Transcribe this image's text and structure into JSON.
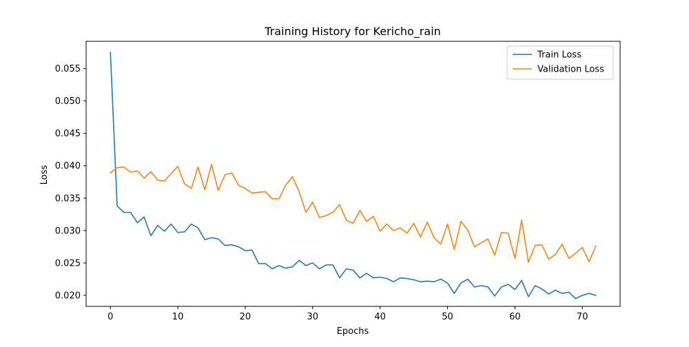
{
  "chart_data": {
    "type": "line",
    "title": "Training History for Kericho_rain",
    "xlabel": "Epochs",
    "ylabel": "Loss",
    "xlim": [
      -3.6,
      75.6
    ],
    "ylim": [
      0.0183,
      0.0592
    ],
    "xticks": [
      0,
      10,
      20,
      30,
      40,
      50,
      60,
      70
    ],
    "xtick_labels": [
      "0",
      "10",
      "20",
      "30",
      "40",
      "50",
      "60",
      "70"
    ],
    "yticks": [
      0.02,
      0.025,
      0.03,
      0.035,
      0.04,
      0.045,
      0.05,
      0.055
    ],
    "ytick_labels": [
      "0.020",
      "0.025",
      "0.030",
      "0.035",
      "0.040",
      "0.045",
      "0.050",
      "0.055"
    ],
    "grid": false,
    "legend_position": "top-right",
    "series": [
      {
        "name": "Train Loss",
        "color": "#1f77b4",
        "x": [
          0,
          1,
          2,
          3,
          4,
          5,
          6,
          7,
          8,
          9,
          10,
          11,
          12,
          13,
          14,
          15,
          16,
          17,
          18,
          19,
          20,
          21,
          22,
          23,
          24,
          25,
          26,
          27,
          28,
          29,
          30,
          31,
          32,
          33,
          34,
          35,
          36,
          37,
          38,
          39,
          40,
          41,
          42,
          43,
          44,
          45,
          46,
          47,
          48,
          49,
          50,
          51,
          52,
          53,
          54,
          55,
          56,
          57,
          58,
          59,
          60,
          61,
          62,
          63,
          64,
          65,
          66,
          67,
          68,
          69,
          70,
          71,
          72
        ],
        "values": [
          0.0575,
          0.0338,
          0.0328,
          0.0328,
          0.0312,
          0.0321,
          0.0292,
          0.0308,
          0.0299,
          0.031,
          0.0297,
          0.0298,
          0.031,
          0.0304,
          0.0286,
          0.0289,
          0.0287,
          0.0277,
          0.0278,
          0.0275,
          0.0269,
          0.027,
          0.0249,
          0.0249,
          0.0241,
          0.0246,
          0.0242,
          0.0244,
          0.0254,
          0.0246,
          0.025,
          0.0241,
          0.0247,
          0.0247,
          0.0227,
          0.0241,
          0.0239,
          0.0227,
          0.0234,
          0.0227,
          0.0228,
          0.0226,
          0.0221,
          0.0227,
          0.0226,
          0.0224,
          0.0221,
          0.0222,
          0.0221,
          0.0225,
          0.0219,
          0.0203,
          0.0219,
          0.0225,
          0.0213,
          0.0215,
          0.0213,
          0.0199,
          0.0213,
          0.0217,
          0.0209,
          0.0223,
          0.0198,
          0.0215,
          0.021,
          0.0202,
          0.0208,
          0.0203,
          0.0205,
          0.0195,
          0.02,
          0.0203,
          0.02
        ]
      },
      {
        "name": "Validation Loss",
        "color": "#ff7f0e",
        "x": [
          0,
          1,
          2,
          3,
          4,
          5,
          6,
          7,
          8,
          9,
          10,
          11,
          12,
          13,
          14,
          15,
          16,
          17,
          18,
          19,
          20,
          21,
          22,
          23,
          24,
          25,
          26,
          27,
          28,
          29,
          30,
          31,
          32,
          33,
          34,
          35,
          36,
          37,
          38,
          39,
          40,
          41,
          42,
          43,
          44,
          45,
          46,
          47,
          48,
          49,
          50,
          51,
          52,
          53,
          54,
          55,
          56,
          57,
          58,
          59,
          60,
          61,
          62,
          63,
          64,
          65,
          66,
          67,
          68,
          69,
          70,
          71,
          72
        ],
        "values": [
          0.0389,
          0.0397,
          0.0398,
          0.039,
          0.0392,
          0.0381,
          0.0391,
          0.0378,
          0.0376,
          0.0388,
          0.0399,
          0.0372,
          0.0365,
          0.0398,
          0.0363,
          0.0402,
          0.0362,
          0.0386,
          0.0389,
          0.037,
          0.0365,
          0.0358,
          0.0359,
          0.036,
          0.0349,
          0.0349,
          0.037,
          0.0383,
          0.036,
          0.0328,
          0.0344,
          0.032,
          0.0323,
          0.0328,
          0.034,
          0.0316,
          0.0311,
          0.0331,
          0.0314,
          0.0322,
          0.0299,
          0.031,
          0.03,
          0.0304,
          0.0296,
          0.0311,
          0.029,
          0.0313,
          0.0289,
          0.0279,
          0.031,
          0.0271,
          0.0314,
          0.0301,
          0.0275,
          0.0281,
          0.0287,
          0.0262,
          0.0297,
          0.0296,
          0.0257,
          0.0316,
          0.0251,
          0.0277,
          0.0278,
          0.0256,
          0.0263,
          0.0279,
          0.0257,
          0.0265,
          0.0274,
          0.0252,
          0.0276
        ]
      }
    ]
  }
}
